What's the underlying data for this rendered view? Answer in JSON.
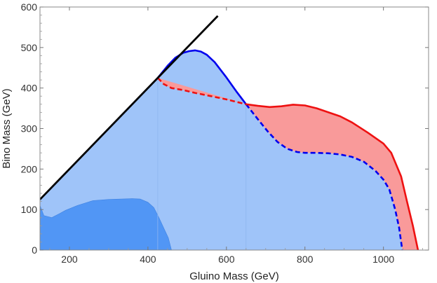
{
  "chart_data": {
    "type": "area",
    "title": "",
    "xlabel": "Gluino Mass (GeV)",
    "ylabel": "Bino Mass (GeV)",
    "xlim": [
      125,
      1115
    ],
    "ylim": [
      0,
      600
    ],
    "x_ticks": [
      200,
      400,
      600,
      800,
      1000
    ],
    "y_ticks": [
      0,
      100,
      200,
      300,
      400,
      500,
      600
    ],
    "grid": false,
    "legend": "none",
    "series": [
      {
        "style": "line",
        "color": "#000000",
        "x": [
          125,
          578
        ],
        "y": [
          125,
          578
        ]
      },
      {
        "style": "area",
        "color": "#4d94f5",
        "points": [
          [
            125,
            110
          ],
          [
            135,
            85
          ],
          [
            155,
            80
          ],
          [
            175,
            90
          ],
          [
            190,
            98
          ],
          [
            220,
            110
          ],
          [
            260,
            122
          ],
          [
            300,
            125
          ],
          [
            360,
            127
          ],
          [
            380,
            126
          ],
          [
            400,
            118
          ],
          [
            415,
            105
          ],
          [
            428,
            80
          ],
          [
            440,
            55
          ],
          [
            452,
            30
          ],
          [
            460,
            0
          ],
          [
            125,
            0
          ]
        ]
      },
      {
        "style": "area-outline",
        "color": "#0000ee",
        "fill": "#9fc4f9",
        "points": [
          [
            125,
            125
          ],
          [
            425,
            425
          ],
          [
            450,
            455
          ],
          [
            470,
            475
          ],
          [
            490,
            487
          ],
          [
            505,
            491
          ],
          [
            520,
            493
          ],
          [
            535,
            490
          ],
          [
            550,
            482
          ],
          [
            570,
            464
          ],
          [
            600,
            426
          ],
          [
            625,
            392
          ],
          [
            650,
            360
          ],
          [
            680,
            323
          ],
          [
            705,
            293
          ],
          [
            730,
            267
          ],
          [
            755,
            250
          ],
          [
            780,
            242
          ],
          [
            800,
            240
          ],
          [
            830,
            240
          ],
          [
            860,
            239
          ],
          [
            890,
            236
          ],
          [
            920,
            230
          ],
          [
            950,
            218
          ],
          [
            980,
            195
          ],
          [
            1000,
            174
          ],
          [
            1015,
            150
          ],
          [
            1030,
            100
          ],
          [
            1040,
            55
          ],
          [
            1048,
            0
          ],
          [
            125,
            0
          ]
        ]
      },
      {
        "style": "area-outline",
        "color": "#ee1111",
        "fill": "#f99a9a",
        "points": [
          [
            425,
            425
          ],
          [
            440,
            410
          ],
          [
            460,
            400
          ],
          [
            490,
            395
          ],
          [
            520,
            388
          ],
          [
            560,
            380
          ],
          [
            600,
            372
          ],
          [
            650,
            360
          ],
          [
            680,
            356
          ],
          [
            710,
            353
          ],
          [
            740,
            355
          ],
          [
            770,
            359
          ],
          [
            800,
            357
          ],
          [
            830,
            350
          ],
          [
            860,
            340
          ],
          [
            890,
            330
          ],
          [
            920,
            315
          ],
          [
            960,
            290
          ],
          [
            1000,
            263
          ],
          [
            1020,
            240
          ],
          [
            1045,
            182
          ],
          [
            1060,
            120
          ],
          [
            1075,
            60
          ],
          [
            1088,
            0
          ]
        ]
      }
    ]
  }
}
